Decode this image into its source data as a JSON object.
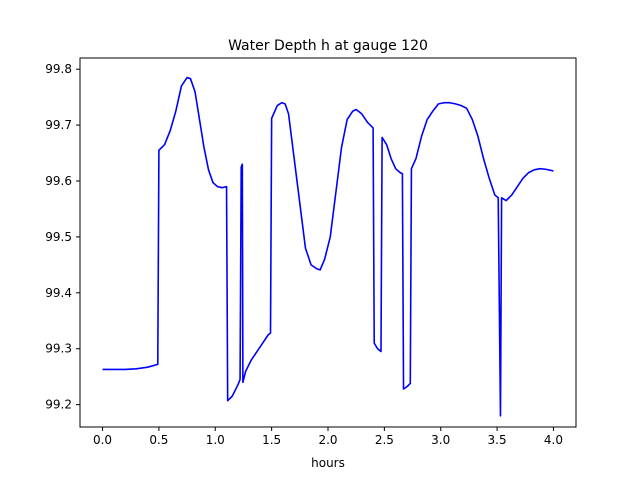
{
  "chart_data": {
    "type": "line",
    "title": "Water Depth h at gauge 120",
    "xlabel": "hours",
    "ylabel": "",
    "xlim": [
      -0.2,
      4.2
    ],
    "ylim": [
      99.16,
      99.82
    ],
    "xticks": [
      0.0,
      0.5,
      1.0,
      1.5,
      2.0,
      2.5,
      3.0,
      3.5,
      4.0
    ],
    "xtick_labels": [
      "0.0",
      "0.5",
      "1.0",
      "1.5",
      "2.0",
      "2.5",
      "3.0",
      "3.5",
      "4.0"
    ],
    "yticks": [
      99.2,
      99.3,
      99.4,
      99.5,
      99.6,
      99.7,
      99.8
    ],
    "ytick_labels": [
      "99.2",
      "99.3",
      "99.4",
      "99.5",
      "99.6",
      "99.7",
      "99.8"
    ],
    "grid": false,
    "legend": "none",
    "series": [
      {
        "color": "#0000ff",
        "points": [
          [
            0.0,
            99.263
          ],
          [
            0.1,
            99.263
          ],
          [
            0.2,
            99.263
          ],
          [
            0.3,
            99.264
          ],
          [
            0.4,
            99.267
          ],
          [
            0.49,
            99.272
          ],
          [
            0.5,
            99.655
          ],
          [
            0.55,
            99.665
          ],
          [
            0.6,
            99.69
          ],
          [
            0.65,
            99.725
          ],
          [
            0.7,
            99.77
          ],
          [
            0.75,
            99.785
          ],
          [
            0.78,
            99.783
          ],
          [
            0.82,
            99.76
          ],
          [
            0.86,
            99.71
          ],
          [
            0.9,
            99.66
          ],
          [
            0.94,
            99.62
          ],
          [
            0.98,
            99.597
          ],
          [
            1.02,
            99.59
          ],
          [
            1.06,
            99.588
          ],
          [
            1.1,
            99.59
          ],
          [
            1.11,
            99.207
          ],
          [
            1.15,
            99.215
          ],
          [
            1.2,
            99.235
          ],
          [
            1.22,
            99.245
          ],
          [
            1.23,
            99.625
          ],
          [
            1.24,
            99.63
          ],
          [
            1.245,
            99.24
          ],
          [
            1.27,
            99.26
          ],
          [
            1.32,
            99.28
          ],
          [
            1.37,
            99.295
          ],
          [
            1.42,
            99.31
          ],
          [
            1.47,
            99.325
          ],
          [
            1.49,
            99.328
          ],
          [
            1.5,
            99.712
          ],
          [
            1.55,
            99.735
          ],
          [
            1.59,
            99.74
          ],
          [
            1.62,
            99.738
          ],
          [
            1.65,
            99.72
          ],
          [
            1.7,
            99.64
          ],
          [
            1.75,
            99.56
          ],
          [
            1.8,
            99.48
          ],
          [
            1.85,
            99.45
          ],
          [
            1.9,
            99.443
          ],
          [
            1.93,
            99.441
          ],
          [
            1.97,
            99.46
          ],
          [
            2.02,
            99.5
          ],
          [
            2.07,
            99.58
          ],
          [
            2.12,
            99.66
          ],
          [
            2.17,
            99.71
          ],
          [
            2.22,
            99.725
          ],
          [
            2.25,
            99.728
          ],
          [
            2.3,
            99.72
          ],
          [
            2.35,
            99.705
          ],
          [
            2.4,
            99.695
          ],
          [
            2.41,
            99.31
          ],
          [
            2.44,
            99.3
          ],
          [
            2.47,
            99.295
          ],
          [
            2.48,
            99.678
          ],
          [
            2.52,
            99.665
          ],
          [
            2.56,
            99.64
          ],
          [
            2.6,
            99.622
          ],
          [
            2.64,
            99.615
          ],
          [
            2.66,
            99.613
          ],
          [
            2.67,
            99.228
          ],
          [
            2.7,
            99.232
          ],
          [
            2.73,
            99.238
          ],
          [
            2.74,
            99.622
          ],
          [
            2.78,
            99.64
          ],
          [
            2.83,
            99.68
          ],
          [
            2.88,
            99.71
          ],
          [
            2.93,
            99.725
          ],
          [
            2.98,
            99.738
          ],
          [
            3.03,
            99.74
          ],
          [
            3.08,
            99.74
          ],
          [
            3.13,
            99.738
          ],
          [
            3.18,
            99.735
          ],
          [
            3.23,
            99.73
          ],
          [
            3.28,
            99.71
          ],
          [
            3.33,
            99.68
          ],
          [
            3.38,
            99.64
          ],
          [
            3.43,
            99.605
          ],
          [
            3.48,
            99.575
          ],
          [
            3.51,
            99.57
          ],
          [
            3.53,
            99.18
          ],
          [
            3.54,
            99.57
          ],
          [
            3.58,
            99.565
          ],
          [
            3.63,
            99.575
          ],
          [
            3.68,
            99.59
          ],
          [
            3.73,
            99.605
          ],
          [
            3.78,
            99.615
          ],
          [
            3.83,
            99.62
          ],
          [
            3.88,
            99.622
          ],
          [
            3.93,
            99.621
          ],
          [
            4.0,
            99.618
          ]
        ]
      }
    ]
  }
}
